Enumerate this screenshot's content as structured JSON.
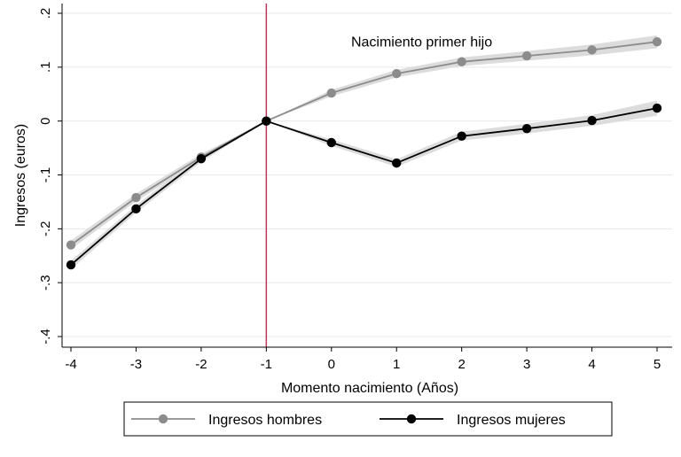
{
  "chart_data": {
    "type": "line",
    "title": "",
    "xlabel": "Momento nacimiento (Años)",
    "ylabel": "Ingresos (euros)",
    "x": [
      -4,
      -3,
      -2,
      -1,
      0,
      1,
      2,
      3,
      4,
      5
    ],
    "xlim": [
      -4,
      5
    ],
    "ylim": [
      -0.4,
      0.2
    ],
    "x_ticks": [
      "-4",
      "-3",
      "-2",
      "-1",
      "0",
      "1",
      "2",
      "3",
      "4",
      "5"
    ],
    "y_ticks": [
      ".2",
      ".1",
      "0",
      "-.1",
      "-.2",
      "-.3",
      "-.4"
    ],
    "y_tick_values": [
      0.2,
      0.1,
      0,
      -0.1,
      -0.2,
      -0.3,
      -0.4
    ],
    "grid": true,
    "legend_position": "bottom",
    "reference_line": {
      "x": -1,
      "color": "#c0395a"
    },
    "annotation": {
      "text": "Nacimiento primer hijo",
      "x": 1.5,
      "y": 0.148
    },
    "series": [
      {
        "name": "Ingresos hombres",
        "color": "#8c8c8c",
        "band_color": "#dcdcdc",
        "values": [
          -0.23,
          -0.142,
          -0.067,
          0.0,
          0.052,
          0.088,
          0.11,
          0.121,
          0.132,
          0.147
        ],
        "ci_half_width": [
          0.008,
          0.007,
          0.006,
          0.0,
          0.006,
          0.007,
          0.008,
          0.009,
          0.01,
          0.012
        ]
      },
      {
        "name": "Ingresos mujeres",
        "color": "#000000",
        "band_color": "#dcdcdc",
        "values": [
          -0.267,
          -0.163,
          -0.07,
          0.0,
          -0.04,
          -0.078,
          -0.028,
          -0.014,
          0.001,
          0.024
        ],
        "ci_half_width": [
          0.008,
          0.007,
          0.006,
          0.0,
          0.006,
          0.007,
          0.008,
          0.009,
          0.01,
          0.014
        ]
      }
    ]
  }
}
